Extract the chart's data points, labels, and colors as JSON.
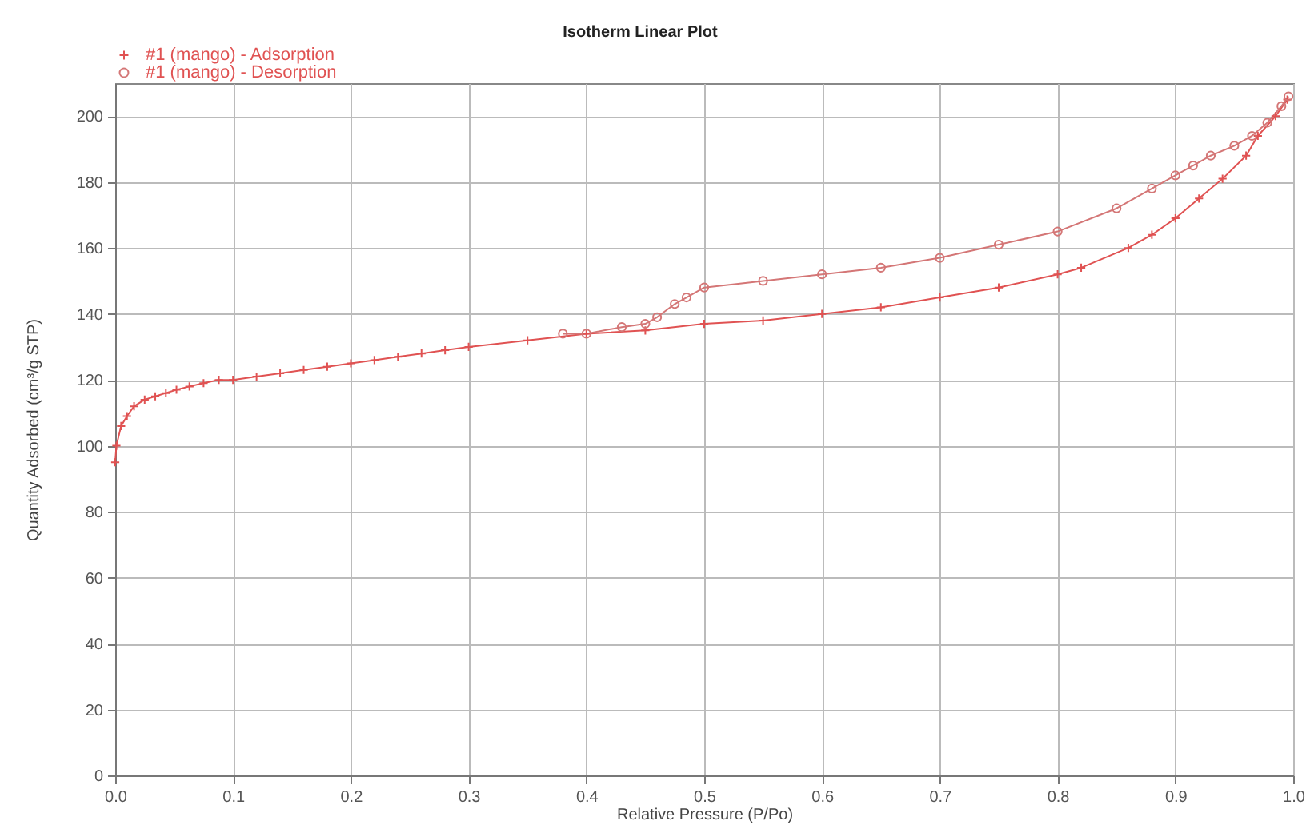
{
  "chart_data": {
    "type": "line",
    "title": "Isotherm Linear Plot",
    "xlabel": "Relative Pressure (P/Po)",
    "ylabel": "Quantity Adsorbed (cm³/g STP)",
    "series": [
      {
        "name": "#1 (mango) - Adsorption",
        "color": "#e05252",
        "marker": "cross",
        "x": [
          0,
          0.001,
          0.005,
          0.01,
          0.016,
          0.025,
          0.034,
          0.043,
          0.052,
          0.063,
          0.075,
          0.088,
          0.1,
          0.12,
          0.14,
          0.16,
          0.18,
          0.2,
          0.22,
          0.24,
          0.26,
          0.28,
          0.3,
          0.35,
          0.4,
          0.45,
          0.5,
          0.55,
          0.6,
          0.65,
          0.7,
          0.75,
          0.8,
          0.82,
          0.86,
          0.88,
          0.9,
          0.92,
          0.94,
          0.96,
          0.97,
          0.985,
          0.995
        ],
        "values": [
          95,
          100,
          106,
          109,
          112,
          114,
          115,
          116,
          117,
          118,
          119,
          120,
          120,
          121,
          122,
          123,
          124,
          125,
          126,
          127,
          128,
          129,
          130,
          132,
          134,
          135,
          137,
          138,
          140,
          142,
          145,
          148,
          152,
          154,
          160,
          164,
          169,
          175,
          181,
          188,
          194,
          200,
          205
        ]
      },
      {
        "name": "#1 (mango) - Desorption",
        "color": "#d47676",
        "marker": "circle",
        "x": [
          0.38,
          0.4,
          0.43,
          0.45,
          0.46,
          0.475,
          0.485,
          0.5,
          0.55,
          0.6,
          0.65,
          0.7,
          0.75,
          0.8,
          0.85,
          0.88,
          0.9,
          0.915,
          0.93,
          0.95,
          0.965,
          0.978,
          0.99,
          0.996
        ],
        "values": [
          134,
          134,
          136,
          137,
          139,
          143,
          145,
          148,
          150,
          152,
          154,
          157,
          161,
          165,
          172,
          178,
          182,
          185,
          188,
          191,
          194,
          198,
          203,
          206
        ]
      }
    ],
    "xlim": [
      0,
      1
    ],
    "ylim": [
      0,
      210
    ],
    "xticks": [
      {
        "value": 0,
        "label": "0.0"
      },
      {
        "value": 0.1,
        "label": "0.1"
      },
      {
        "value": 0.2,
        "label": "0.2"
      },
      {
        "value": 0.3,
        "label": "0.3"
      },
      {
        "value": 0.4,
        "label": "0.4"
      },
      {
        "value": 0.5,
        "label": "0.5"
      },
      {
        "value": 0.6,
        "label": "0.6"
      },
      {
        "value": 0.7,
        "label": "0.7"
      },
      {
        "value": 0.8,
        "label": "0.8"
      },
      {
        "value": 0.9,
        "label": "0.9"
      },
      {
        "value": 1,
        "label": "1.0"
      }
    ],
    "yticks": [
      0,
      20,
      40,
      60,
      80,
      100,
      120,
      140,
      160,
      180,
      200
    ],
    "grid": true,
    "legend": "top left"
  }
}
